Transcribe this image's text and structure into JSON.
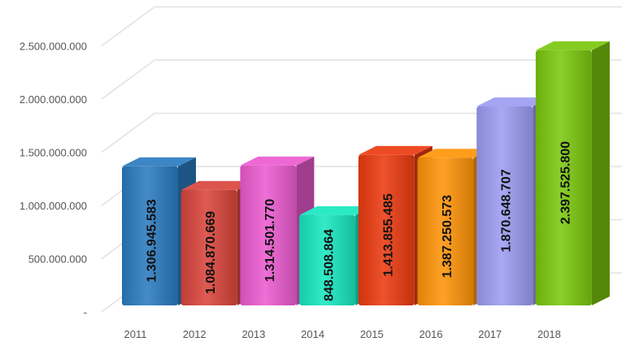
{
  "chart_data": {
    "type": "bar",
    "title": "",
    "xlabel": "",
    "ylabel": "",
    "categories": [
      "2011",
      "2012",
      "2013",
      "2014",
      "2015",
      "2016",
      "2017",
      "2018"
    ],
    "values": [
      1306945583,
      1084870669,
      1314501770,
      848508864,
      1413855485,
      1387250573,
      1870648707,
      2397525800
    ],
    "value_labels": [
      "1.306.945.583",
      "1.084.870.669",
      "1.314.501.770",
      "848.508.864",
      "1.413.855.485",
      "1.387.250.573",
      "1.870.648.707",
      "2.397.525.800"
    ],
    "bar_colors": [
      "#2b7bc0",
      "#d9453c",
      "#ec5bd0",
      "#17e8c0",
      "#ec3a10",
      "#ff9408",
      "#9c9cf2",
      "#7ac80e"
    ],
    "ylim": [
      0,
      2500000000
    ],
    "y_ticks": [
      0,
      500000000,
      1000000000,
      1500000000,
      2000000000,
      2500000000
    ],
    "y_tick_labels": [
      "-",
      "500.000.000",
      "1.000.000.000",
      "1.500.000.000",
      "2.000.000.000",
      "2.500.000.000"
    ],
    "grid": true,
    "legend": "none",
    "style": "3d-bar"
  }
}
